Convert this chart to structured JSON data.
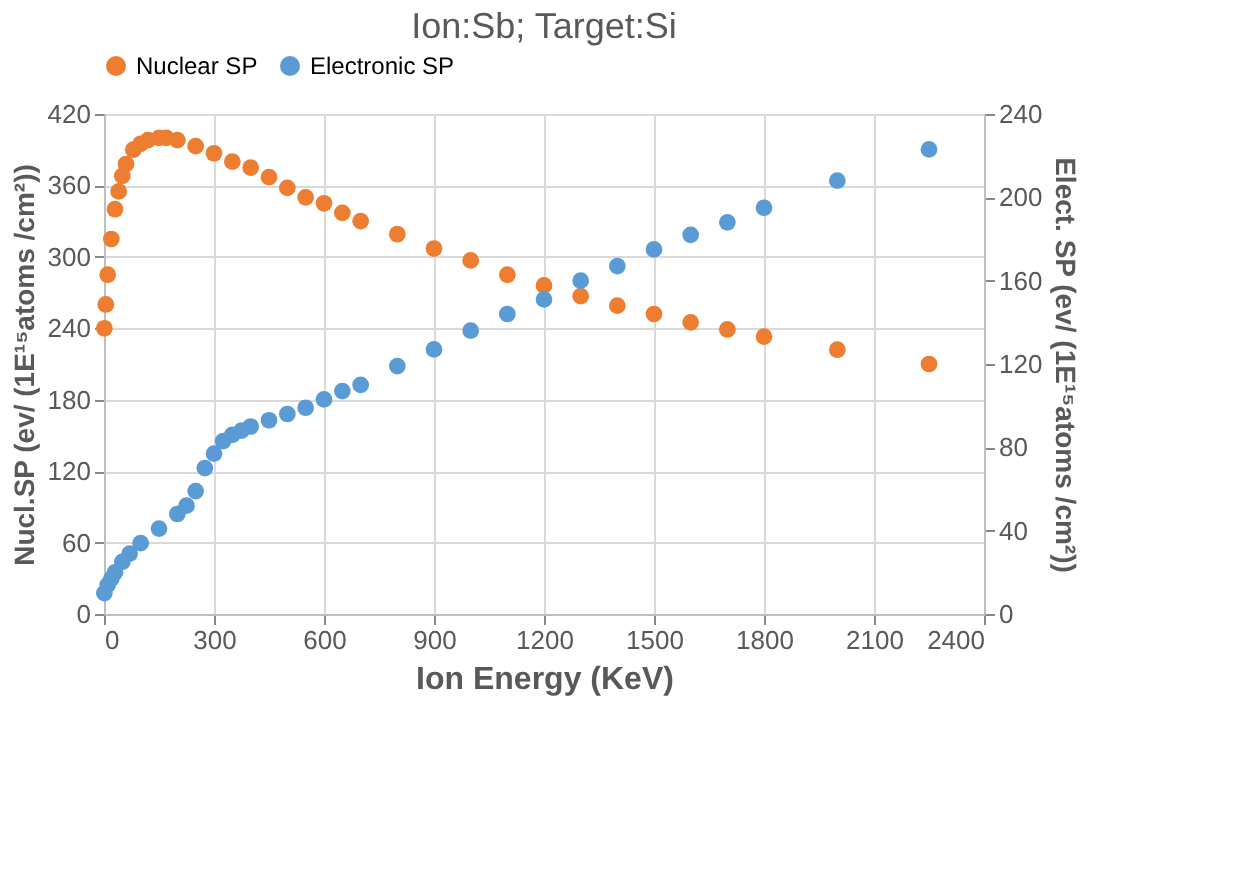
{
  "chart_data": {
    "type": "scatter",
    "title": "Ion:Sb; Target:Si",
    "xlabel": "Ion Energy (KeV)",
    "ylabel": "Nucl.SP (ev/ (1E¹⁵atoms /cm²))",
    "y2label": "Elect. SP (ev/ (1E¹⁵atoms /cm²))",
    "xlim": [
      0,
      2400
    ],
    "xticks": [
      0,
      300,
      600,
      900,
      1200,
      1500,
      1800,
      2100,
      2400
    ],
    "ylim": [
      0,
      420
    ],
    "yticks": [
      0,
      60,
      120,
      180,
      240,
      300,
      360,
      420
    ],
    "y2lim": [
      0,
      240
    ],
    "y2ticks": [
      0,
      40,
      80,
      120,
      160,
      200,
      240
    ],
    "grid": true,
    "legend": "top",
    "marker": "circle",
    "series": [
      {
        "name": "Nuclear SP",
        "color": "#ed7d31",
        "x": [
          1,
          5,
          10,
          20,
          30,
          40,
          50,
          60,
          80,
          100,
          120,
          150,
          170,
          200,
          250,
          300,
          350,
          400,
          450,
          500,
          550,
          600,
          650,
          700,
          800,
          900,
          1000,
          1100,
          1200,
          1300,
          1400,
          1500,
          1600,
          1700,
          1800,
          2000,
          2250
        ],
        "values": [
          240,
          260,
          285,
          315,
          340,
          355,
          368,
          378,
          390,
          395,
          398,
          400,
          400,
          398,
          393,
          387,
          380,
          375,
          367,
          358,
          350,
          345,
          337,
          330,
          319,
          307,
          297,
          285,
          276,
          267,
          259,
          252,
          245,
          239,
          233,
          222,
          210
        ]
      },
      {
        "name": "Electronic SP",
        "color": "#5b9bd5",
        "axis": "y2",
        "x": [
          1,
          10,
          20,
          30,
          50,
          70,
          100,
          150,
          200,
          225,
          250,
          275,
          300,
          325,
          350,
          375,
          400,
          450,
          500,
          550,
          600,
          650,
          700,
          800,
          900,
          1000,
          1100,
          1200,
          1300,
          1400,
          1500,
          1600,
          1700,
          1800,
          2000,
          2250
        ],
        "values": [
          10,
          14,
          17,
          20,
          25,
          29,
          34,
          41,
          48,
          52,
          59,
          70,
          77,
          83,
          86,
          88,
          90,
          93,
          96,
          99,
          103,
          107,
          110,
          119,
          127,
          136,
          144,
          151,
          160,
          167,
          175,
          182,
          188,
          195,
          208,
          223
        ]
      }
    ]
  }
}
